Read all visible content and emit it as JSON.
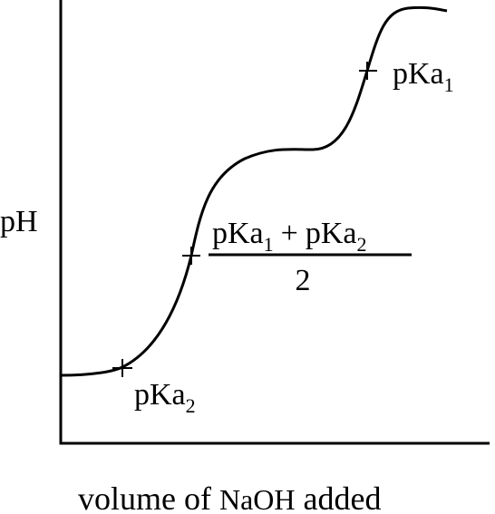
{
  "y_axis_label": "pH",
  "x_axis_label": {
    "word1": "volume of",
    "reagent": "NaOH",
    "word2": "added"
  },
  "points": {
    "pka2": {
      "label": "pKa",
      "subscript": "2"
    },
    "midpoint": {
      "numerator": {
        "a": "pKa",
        "a_sub": "1",
        "op": "+",
        "b": "pKa",
        "b_sub": "2"
      },
      "denominator": "2"
    },
    "pka1": {
      "label": "pKa",
      "subscript": "1"
    }
  },
  "colors": {
    "line": "#000000",
    "background": "#ffffff"
  }
}
